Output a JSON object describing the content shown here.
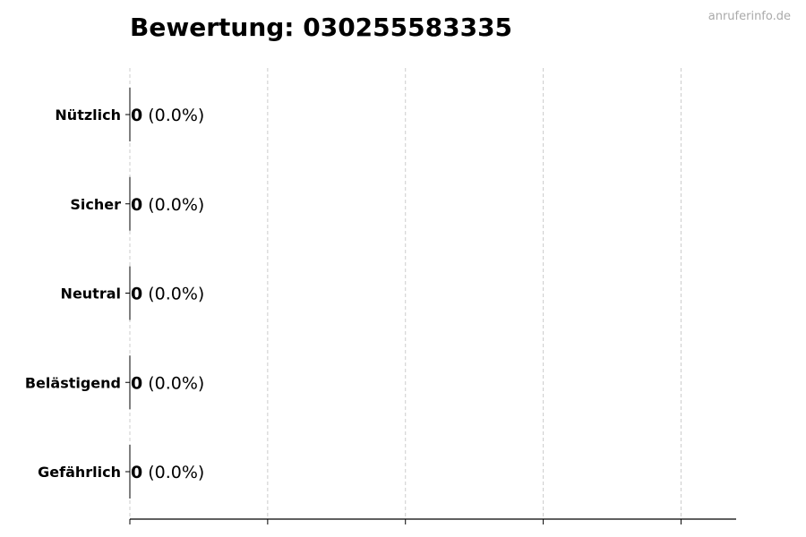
{
  "watermark": "anruferinfo.de",
  "chart_data": {
    "type": "bar",
    "orientation": "horizontal",
    "title": "Bewertung: 030255583335",
    "categories": [
      "Nützlich",
      "Sicher",
      "Neutral",
      "Belästigend",
      "Gefährlich"
    ],
    "values": [
      0,
      0,
      0,
      0,
      0
    ],
    "labels": [
      "0",
      "0",
      "0",
      "0",
      "0"
    ],
    "percent_labels": [
      "(0.0%)",
      "(0.0%)",
      "(0.0%)",
      "(0.0%)",
      "(0.0%)"
    ],
    "xlim": [
      0,
      4.4
    ],
    "xticks": [
      0,
      1,
      2,
      3,
      4
    ],
    "xtick_labels_shown": false,
    "grid": "vertical dashed",
    "colors": {
      "bar_edge": "#000000",
      "grid": "#cccccc",
      "watermark": "#aaaaaa"
    }
  }
}
